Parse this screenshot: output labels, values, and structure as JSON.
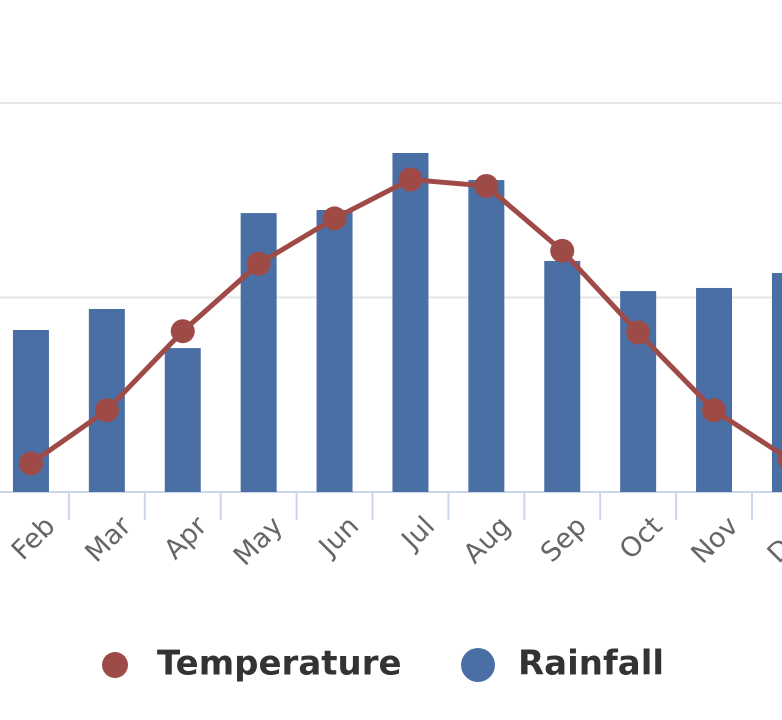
{
  "chart_data": {
    "type": "bar",
    "categories": [
      "Feb",
      "Mar",
      "Apr",
      "May",
      "Jun",
      "Jul",
      "Aug",
      "Sep",
      "Oct",
      "Nov",
      "Dec"
    ],
    "series": [
      {
        "name": "Temperature",
        "type": "line",
        "axis": "y2",
        "color": "#9e4a47",
        "values": [
          2.2,
          6.3,
          12.4,
          17.6,
          21.1,
          24.1,
          23.6,
          18.6,
          12.3,
          6.3,
          2.5
        ]
      },
      {
        "name": "Rainfall",
        "type": "bar",
        "color": "#4a6fa5",
        "values": [
          83.3,
          94.1,
          74,
          143.4,
          145,
          174.3,
          160.4,
          118.8,
          103.3,
          104.9,
          112.6
        ]
      }
    ],
    "ylim": [
      0,
      200
    ],
    "yticks": [
      0,
      100,
      200
    ],
    "y2lim": [
      0,
      30
    ],
    "grid": true
  }
}
